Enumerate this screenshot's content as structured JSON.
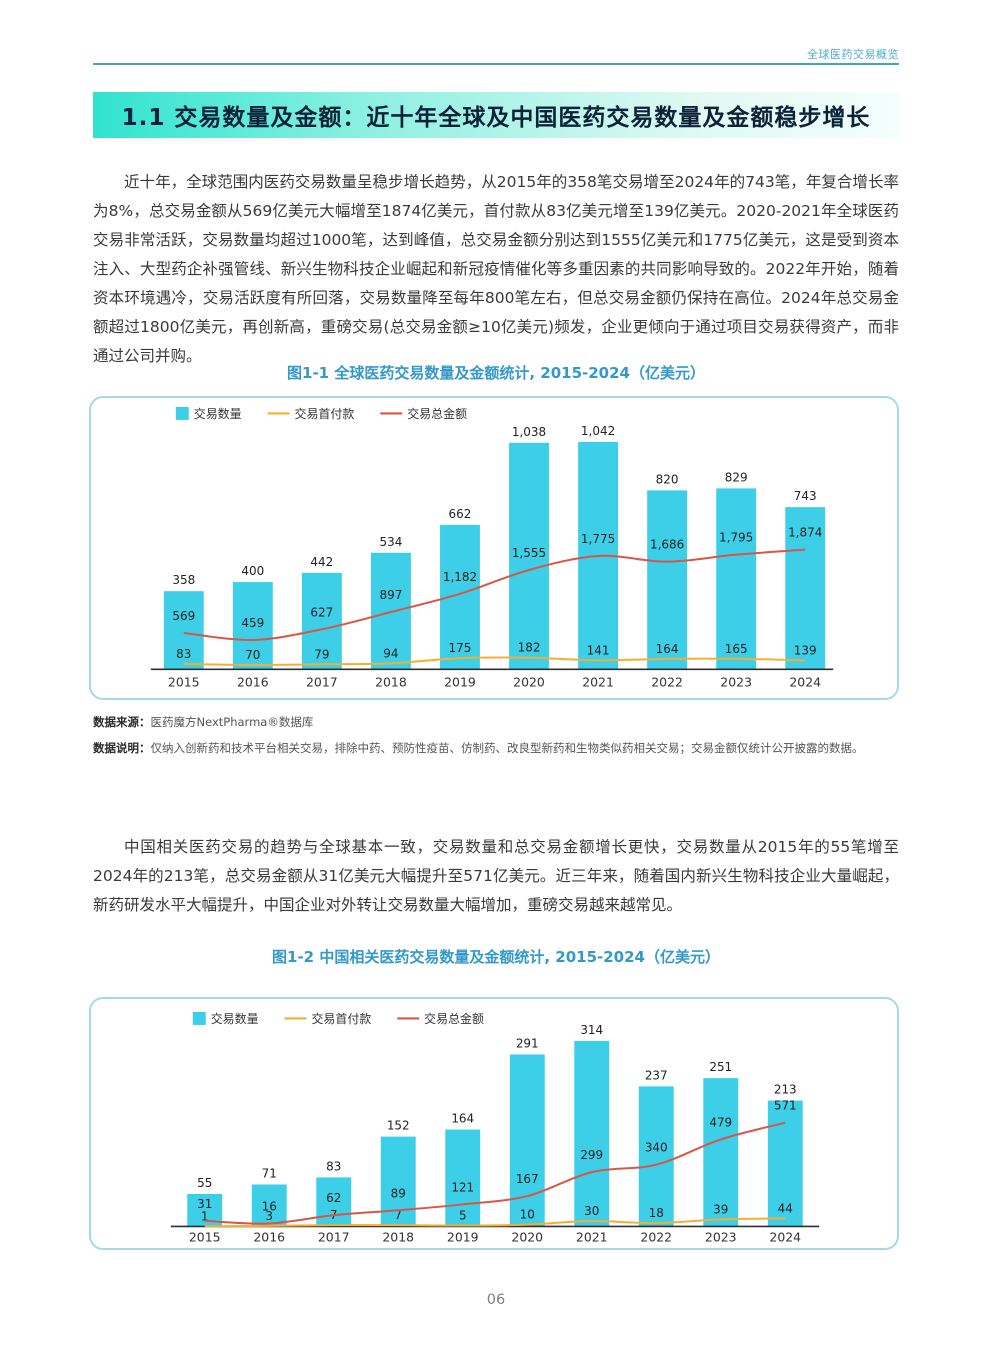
{
  "header": {
    "section_label": "全球医药交易概览"
  },
  "banner": {
    "title": "1.1 交易数量及金额：近十年全球及中国医药交易数量及金额稳步增长"
  },
  "paragraphs": {
    "global": "近十年，全球范围内医药交易数量呈稳步增长趋势，从2015年的358笔交易增至2024年的743笔，年复合增长率为8%，总交易金额从569亿美元大幅增至1874亿美元，首付款从83亿美元增至139亿美元。2020-2021年全球医药交易非常活跃，交易数量均超过1000笔，达到峰值，总交易金额分别达到1555亿美元和1775亿美元，这是受到资本注入、大型药企补强管线、新兴生物科技企业崛起和新冠疫情催化等多重因素的共同影响导致的。2022年开始，随着资本环境遇冷，交易活跃度有所回落，交易数量降至每年800笔左右，但总交易金额仍保持在高位。2024年总交易金额超过1800亿美元，再创新高，重磅交易(总交易金额≥10亿美元)频发，企业更倾向于通过项目交易获得资产，而非通过公司并购。",
    "china": "中国相关医药交易的趋势与全球基本一致，交易数量和总交易金额增长更快，交易数量从2015年的55笔增至2024年的213笔，总交易金额从31亿美元大幅提升至571亿美元。近三年来，随着国内新兴生物科技企业大量崛起，新药研发水平大幅提升，中国企业对外转让交易数量大幅增加，重磅交易越来越常见。"
  },
  "notes": {
    "source_label": "数据来源：",
    "source_text": "医药魔方NextPharma®数据库",
    "desc_label": "数据说明：",
    "desc_text": "仅纳入创新药和技术平台相关交易，排除中药、预防性疫苗、仿制药、改良型新药和生物类似药相关交易；交易金额仅统计公开披露的数据。"
  },
  "page_number": "06",
  "colors": {
    "accent_teal": "#3499C9",
    "banner_gradient_start": "#2FE3CF",
    "banner_text": "#0B2239",
    "bar_cyan": "#3ECFE8",
    "downpayment_yellow": "#F5AE33",
    "total_red": "#D95546",
    "chart_border": "#A6D7EB"
  },
  "chart_data": [
    {
      "id": "global",
      "type": "bar",
      "title": "图1-1 全球医药交易数量及金额统计, 2015-2024（亿美元）",
      "categories": [
        "2015",
        "2016",
        "2017",
        "2018",
        "2019",
        "2020",
        "2021",
        "2022",
        "2023",
        "2024"
      ],
      "series": [
        {
          "name": "交易数量",
          "type": "bar",
          "color": "#3ECFE8",
          "values": [
            358,
            400,
            442,
            534,
            662,
            1038,
            1042,
            820,
            829,
            743
          ]
        },
        {
          "name": "交易首付款",
          "type": "line",
          "color": "#F5AE33",
          "values": [
            83,
            70,
            79,
            94,
            175,
            182,
            141,
            164,
            165,
            139
          ]
        },
        {
          "name": "交易总金额",
          "type": "line",
          "color": "#D95546",
          "values": [
            569,
            459,
            627,
            897,
            1182,
            1555,
            1775,
            1686,
            1795,
            1874
          ]
        }
      ],
      "unit": "亿美元",
      "legend_position": "top-left",
      "grid": false,
      "y_axis_labels_visible": false
    },
    {
      "id": "china",
      "type": "bar",
      "title": "图1-2 中国相关医药交易数量及金额统计, 2015-2024（亿美元）",
      "categories": [
        "2015",
        "2016",
        "2017",
        "2018",
        "2019",
        "2020",
        "2021",
        "2022",
        "2023",
        "2024"
      ],
      "series": [
        {
          "name": "交易数量",
          "type": "bar",
          "color": "#3ECFE8",
          "values": [
            55,
            71,
            83,
            152,
            164,
            291,
            314,
            237,
            251,
            213
          ]
        },
        {
          "name": "交易首付款",
          "type": "line",
          "color": "#F5AE33",
          "values": [
            1,
            3,
            7,
            7,
            5,
            10,
            30,
            18,
            39,
            44
          ]
        },
        {
          "name": "交易总金额",
          "type": "line",
          "color": "#D95546",
          "values": [
            31,
            16,
            62,
            89,
            121,
            167,
            299,
            340,
            479,
            571
          ]
        }
      ],
      "unit": "亿美元",
      "legend_position": "top-left",
      "grid": false,
      "y_axis_labels_visible": false
    }
  ]
}
